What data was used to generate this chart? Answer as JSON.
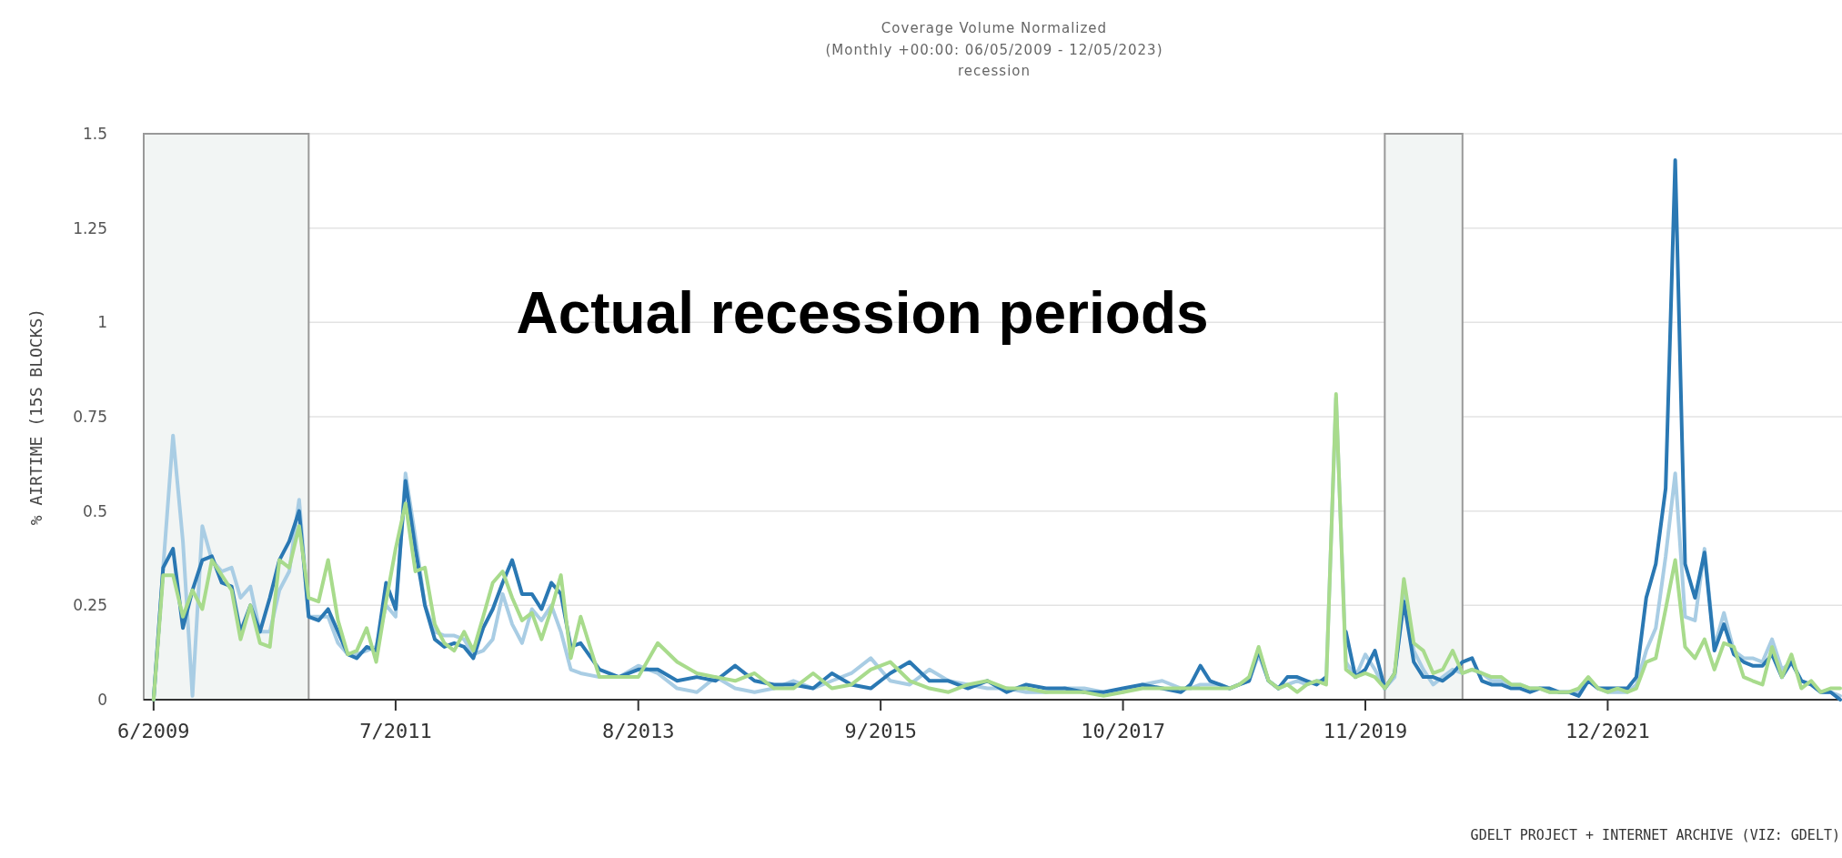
{
  "chart_data": {
    "type": "line",
    "title": "Coverage Volume Normalized",
    "subtitle": "(Monthly +00:00: 06/05/2009 - 12/05/2023)\nrecession",
    "ylabel": "% AIRTIME (15S BLOCKS)",
    "annotations": [
      "Actual recession periods",
      "GDELT PROJECT + INTERNET ARCHIVE (VIZ: GDELT)"
    ],
    "x": [
      "2009-06",
      "2009-07",
      "2009-08",
      "2009-09",
      "2009-10",
      "2009-11",
      "2009-12",
      "2010-01",
      "2010-02",
      "2010-03",
      "2010-04",
      "2010-05",
      "2010-06",
      "2010-07",
      "2010-08",
      "2010-09",
      "2010-10",
      "2010-11",
      "2010-12",
      "2011-01",
      "2011-02",
      "2011-03",
      "2011-04",
      "2011-05",
      "2011-06",
      "2011-07",
      "2011-08",
      "2011-09",
      "2011-10",
      "2011-11",
      "2011-12",
      "2012-01",
      "2012-02",
      "2012-03",
      "2012-04",
      "2012-05",
      "2012-06",
      "2012-07",
      "2012-08",
      "2012-09",
      "2012-10",
      "2012-11",
      "2012-12",
      "2013-01",
      "2013-02",
      "2013-04",
      "2013-06",
      "2013-08",
      "2013-10",
      "2013-12",
      "2014-02",
      "2014-04",
      "2014-06",
      "2014-08",
      "2014-10",
      "2014-12",
      "2015-02",
      "2015-04",
      "2015-06",
      "2015-08",
      "2015-10",
      "2015-12",
      "2016-02",
      "2016-04",
      "2016-06",
      "2016-08",
      "2016-10",
      "2016-12",
      "2017-02",
      "2017-04",
      "2017-06",
      "2017-08",
      "2017-10",
      "2017-12",
      "2018-02",
      "2018-04",
      "2018-05",
      "2018-06",
      "2018-07",
      "2018-08",
      "2018-09",
      "2018-10",
      "2018-11",
      "2018-12",
      "2019-01",
      "2019-02",
      "2019-03",
      "2019-04",
      "2019-05",
      "2019-06",
      "2019-07",
      "2019-08",
      "2019-09",
      "2019-10",
      "2019-11",
      "2019-12",
      "2020-01",
      "2020-02",
      "2020-03",
      "2020-04",
      "2020-05",
      "2020-06",
      "2020-07",
      "2020-08",
      "2020-09",
      "2020-10",
      "2020-11",
      "2020-12",
      "2021-01",
      "2021-02",
      "2021-03",
      "2021-04",
      "2021-05",
      "2021-06",
      "2021-07",
      "2021-08",
      "2021-09",
      "2021-10",
      "2021-11",
      "2021-12",
      "2022-01",
      "2022-02",
      "2022-03",
      "2022-04",
      "2022-05",
      "2022-06",
      "2022-07",
      "2022-08",
      "2022-09",
      "2022-10",
      "2022-11",
      "2022-12",
      "2023-01",
      "2023-02",
      "2023-03",
      "2023-04",
      "2023-05",
      "2023-06",
      "2023-07",
      "2023-08",
      "2023-09",
      "2023-10",
      "2023-11",
      "2023-12"
    ],
    "series": [
      {
        "color": "#a9cde4",
        "values": [
          0,
          0.35,
          0.7,
          0.42,
          0.01,
          0.46,
          0.37,
          0.34,
          0.35,
          0.27,
          0.3,
          0.18,
          0.18,
          0.29,
          0.34,
          0.53,
          0.22,
          0.22,
          0.22,
          0.15,
          0.12,
          0.12,
          0.13,
          0.14,
          0.25,
          0.22,
          0.6,
          0.43,
          0.25,
          0.18,
          0.17,
          0.17,
          0.16,
          0.12,
          0.13,
          0.16,
          0.28,
          0.2,
          0.15,
          0.24,
          0.21,
          0.25,
          0.18,
          0.08,
          0.07,
          0.06,
          0.06,
          0.09,
          0.07,
          0.03,
          0.02,
          0.06,
          0.03,
          0.02,
          0.03,
          0.05,
          0.03,
          0.05,
          0.07,
          0.11,
          0.05,
          0.04,
          0.08,
          0.05,
          0.04,
          0.03,
          0.03,
          0.02,
          0.02,
          0.03,
          0.03,
          0.02,
          0.02,
          0.04,
          0.05,
          0.03,
          0.03,
          0.04,
          0.04,
          0.04,
          0.03,
          0.04,
          0.05,
          0.12,
          0.05,
          0.03,
          0.04,
          0.05,
          0.04,
          0.05,
          0.05,
          0.8,
          0.1,
          0.06,
          0.12,
          0.08,
          0.03,
          0.06,
          0.28,
          0.13,
          0.08,
          0.04,
          0.06,
          0.08,
          0.07,
          0.08,
          0.07,
          0.05,
          0.05,
          0.04,
          0.04,
          0.03,
          0.03,
          0.02,
          0.02,
          0.02,
          0.02,
          0.05,
          0.03,
          0.02,
          0.02,
          0.02,
          0.04,
          0.13,
          0.19,
          0.38,
          0.6,
          0.22,
          0.21,
          0.4,
          0.14,
          0.23,
          0.13,
          0.11,
          0.11,
          0.1,
          0.16,
          0.08,
          0.1,
          0.05,
          0.04,
          0.02,
          0.02,
          0.01
        ]
      },
      {
        "color": "#2a78b3",
        "values": [
          0,
          0.35,
          0.4,
          0.19,
          0.29,
          0.37,
          0.38,
          0.31,
          0.3,
          0.18,
          0.25,
          0.18,
          0.27,
          0.37,
          0.42,
          0.5,
          0.22,
          0.21,
          0.24,
          0.18,
          0.12,
          0.11,
          0.14,
          0.13,
          0.31,
          0.24,
          0.58,
          0.4,
          0.25,
          0.16,
          0.14,
          0.15,
          0.14,
          0.11,
          0.19,
          0.24,
          0.31,
          0.37,
          0.28,
          0.28,
          0.24,
          0.31,
          0.28,
          0.14,
          0.15,
          0.08,
          0.06,
          0.08,
          0.08,
          0.05,
          0.06,
          0.05,
          0.09,
          0.05,
          0.04,
          0.04,
          0.03,
          0.07,
          0.04,
          0.03,
          0.07,
          0.1,
          0.05,
          0.05,
          0.03,
          0.05,
          0.02,
          0.04,
          0.03,
          0.03,
          0.02,
          0.02,
          0.03,
          0.04,
          0.03,
          0.02,
          0.04,
          0.09,
          0.05,
          0.04,
          0.03,
          0.04,
          0.05,
          0.13,
          0.05,
          0.03,
          0.06,
          0.06,
          0.05,
          0.04,
          0.06,
          null,
          0.18,
          0.06,
          0.08,
          0.13,
          0.03,
          0.07,
          0.26,
          0.1,
          0.06,
          0.06,
          0.05,
          0.07,
          0.1,
          0.11,
          0.05,
          0.04,
          0.04,
          0.03,
          0.03,
          0.02,
          0.03,
          0.03,
          0.02,
          0.02,
          0.01,
          0.05,
          0.03,
          0.03,
          0.03,
          0.03,
          0.06,
          0.27,
          0.36,
          0.56,
          1.43,
          0.36,
          0.27,
          0.39,
          0.13,
          0.2,
          0.12,
          0.1,
          0.09,
          0.09,
          0.12,
          0.06,
          0.1,
          0.05,
          0.04,
          0.02,
          0.02,
          0
        ]
      },
      {
        "color": "#a8db8c",
        "values": [
          0,
          0.33,
          0.33,
          0.22,
          0.29,
          0.24,
          0.37,
          0.33,
          0.29,
          0.16,
          0.25,
          0.15,
          0.14,
          0.37,
          0.35,
          0.46,
          0.27,
          0.26,
          0.37,
          0.21,
          0.12,
          0.13,
          0.19,
          0.1,
          0.26,
          0.4,
          0.52,
          0.34,
          0.35,
          0.2,
          0.15,
          0.13,
          0.18,
          0.13,
          0.22,
          0.31,
          0.34,
          0.27,
          0.21,
          0.23,
          0.16,
          0.24,
          0.33,
          0.11,
          0.22,
          0.06,
          0.06,
          0.06,
          0.15,
          0.1,
          0.07,
          0.06,
          0.05,
          0.07,
          0.03,
          0.03,
          0.07,
          0.03,
          0.04,
          0.08,
          0.1,
          0.05,
          0.03,
          0.02,
          0.04,
          0.05,
          0.03,
          0.03,
          0.02,
          0.02,
          0.02,
          0.01,
          0.02,
          0.03,
          0.03,
          0.03,
          0.03,
          0.03,
          0.03,
          0.03,
          0.03,
          0.04,
          0.06,
          0.14,
          0.05,
          0.03,
          0.04,
          0.02,
          0.04,
          0.05,
          0.04,
          0.81,
          0.08,
          0.06,
          0.07,
          0.06,
          0.03,
          0.07,
          0.32,
          0.15,
          0.13,
          0.07,
          0.08,
          0.13,
          0.07,
          0.08,
          0.07,
          0.06,
          0.06,
          0.04,
          0.04,
          0.03,
          0.03,
          0.02,
          0.02,
          0.02,
          0.03,
          0.06,
          0.03,
          0.02,
          0.03,
          0.02,
          0.03,
          0.1,
          0.11,
          0.24,
          0.37,
          0.14,
          0.11,
          0.16,
          0.08,
          0.15,
          0.14,
          0.06,
          0.05,
          0.04,
          0.14,
          0.06,
          0.12,
          0.03,
          0.05,
          0.02,
          0.03,
          0.03
        ]
      }
    ],
    "xlim": [
      "2009-05",
      "2023-12"
    ],
    "xticks": [
      {
        "value": "2009-06",
        "label": "6/2009"
      },
      {
        "value": "2011-07",
        "label": "7/2011"
      },
      {
        "value": "2013-08",
        "label": "8/2013"
      },
      {
        "value": "2015-09",
        "label": "9/2015"
      },
      {
        "value": "2017-10",
        "label": "10/2017"
      },
      {
        "value": "2019-11",
        "label": "11/2019"
      },
      {
        "value": "2021-12",
        "label": "12/2021"
      }
    ],
    "ylim": [
      0,
      1.5
    ],
    "yticks": [
      0,
      0.25,
      0.5,
      0.75,
      1,
      1.25,
      1.5
    ],
    "grid": "y",
    "bands": [
      {
        "axis": "x",
        "from": "2009-05",
        "to": "2010-10",
        "color": "#f2f5f4"
      },
      {
        "axis": "x",
        "from": "2020-01",
        "to": "2020-09",
        "color": "#f2f5f4"
      }
    ]
  }
}
